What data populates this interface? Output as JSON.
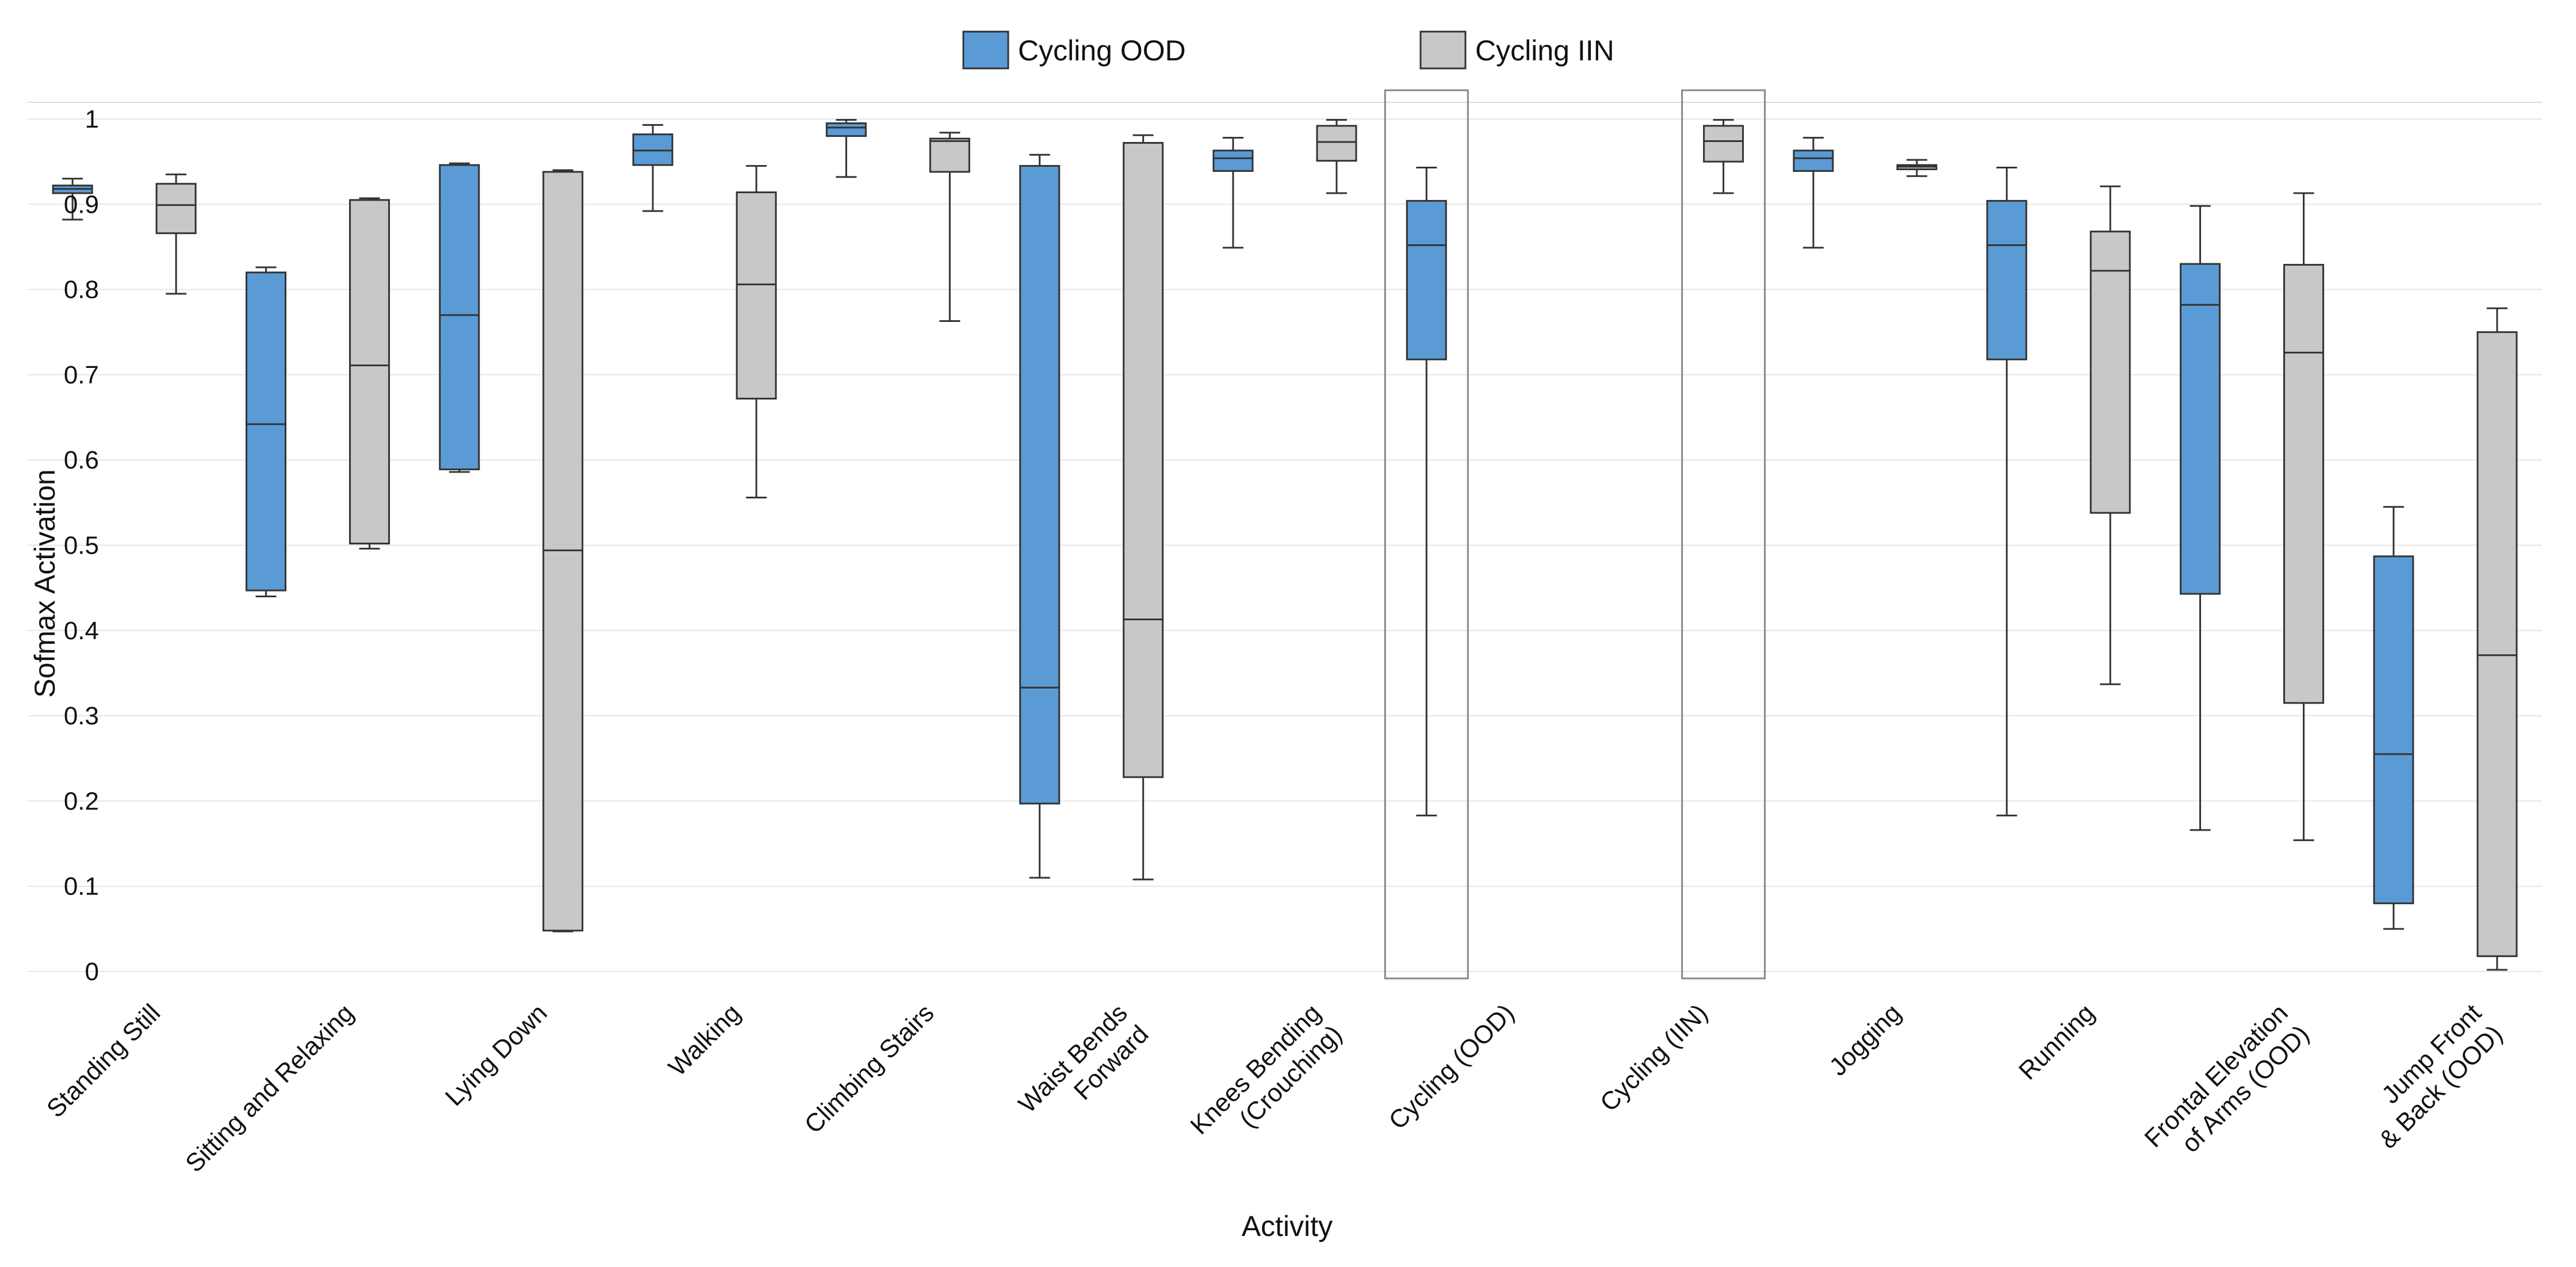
{
  "chart_data": {
    "type": "box",
    "xlabel": "Activity",
    "ylabel": "Sofmax Activation",
    "ylim": [
      0,
      1
    ],
    "yticks": [
      "0",
      "0.1",
      "0.2",
      "0.3",
      "0.4",
      "0.5",
      "0.6",
      "0.7",
      "0.8",
      "0.9",
      "1"
    ],
    "colors": {
      "ood": "#5b9bd5",
      "iin": "#c8c8c8",
      "highlight": "#888888"
    },
    "legend": [
      {
        "name": "Cycling OOD",
        "color": "#5b9bd5"
      },
      {
        "name": "Cycling IIN",
        "color": "#c8c8c8"
      }
    ],
    "groups": [
      {
        "label": [
          "Standing Still"
        ],
        "boxes": [
          {
            "series": "Cycling OOD",
            "min": 0.882,
            "q1": 0.913,
            "median": 0.918,
            "q3": 0.922,
            "max": 0.93
          },
          {
            "series": "Cycling IIN",
            "min": 0.795,
            "q1": 0.866,
            "median": 0.899,
            "q3": 0.924,
            "max": 0.935
          }
        ]
      },
      {
        "label": [
          "Sitting and Relaxing"
        ],
        "boxes": [
          {
            "series": "Cycling OOD",
            "min": 0.44,
            "q1": 0.447,
            "median": 0.642,
            "q3": 0.82,
            "max": 0.826
          },
          {
            "series": "Cycling IIN",
            "min": 0.496,
            "q1": 0.502,
            "median": 0.711,
            "q3": 0.905,
            "max": 0.907
          }
        ]
      },
      {
        "label": [
          "Lying Down"
        ],
        "boxes": [
          {
            "series": "Cycling OOD",
            "min": 0.586,
            "q1": 0.589,
            "median": 0.77,
            "q3": 0.946,
            "max": 0.948
          },
          {
            "series": "Cycling IIN",
            "min": 0.047,
            "q1": 0.048,
            "median": 0.494,
            "q3": 0.938,
            "max": 0.94
          }
        ]
      },
      {
        "label": [
          "Walking"
        ],
        "boxes": [
          {
            "series": "Cycling OOD",
            "min": 0.892,
            "q1": 0.946,
            "median": 0.963,
            "q3": 0.982,
            "max": 0.993
          },
          {
            "series": "Cycling IIN",
            "min": 0.556,
            "q1": 0.672,
            "median": 0.806,
            "q3": 0.914,
            "max": 0.945
          }
        ]
      },
      {
        "label": [
          "Climbing Stairs"
        ],
        "boxes": [
          {
            "series": "Cycling OOD",
            "min": 0.932,
            "q1": 0.98,
            "median": 0.99,
            "q3": 0.995,
            "max": 0.999
          },
          {
            "series": "Cycling IIN",
            "min": 0.763,
            "q1": 0.938,
            "median": 0.974,
            "q3": 0.977,
            "max": 0.984
          }
        ]
      },
      {
        "label": [
          "Waist Bends",
          "Forward"
        ],
        "boxes": [
          {
            "series": "Cycling OOD",
            "min": 0.11,
            "q1": 0.197,
            "median": 0.333,
            "q3": 0.945,
            "max": 0.958
          },
          {
            "series": "Cycling IIN",
            "min": 0.108,
            "q1": 0.228,
            "median": 0.413,
            "q3": 0.972,
            "max": 0.981
          }
        ]
      },
      {
        "label": [
          "Knees Bending",
          "(Crouching)"
        ],
        "boxes": [
          {
            "series": "Cycling OOD",
            "min": 0.849,
            "q1": 0.939,
            "median": 0.954,
            "q3": 0.963,
            "max": 0.978
          },
          {
            "series": "Cycling IIN",
            "min": 0.913,
            "q1": 0.951,
            "median": 0.973,
            "q3": 0.992,
            "max": 0.999
          }
        ]
      },
      {
        "label": [
          "Cycling (OOD)"
        ],
        "highlight": 0,
        "boxes": [
          {
            "series": "Cycling OOD",
            "min": 0.183,
            "q1": 0.718,
            "median": 0.852,
            "q3": 0.904,
            "max": 0.943
          }
        ]
      },
      {
        "label": [
          "Cycling (IIN)"
        ],
        "highlight": 1,
        "boxes": [
          {
            "series": "Cycling IIN",
            "min": 0.913,
            "q1": 0.95,
            "median": 0.974,
            "q3": 0.992,
            "max": 0.999
          }
        ]
      },
      {
        "label": [
          "Jogging"
        ],
        "boxes": [
          {
            "series": "Cycling OOD",
            "min": 0.849,
            "q1": 0.939,
            "median": 0.954,
            "q3": 0.963,
            "max": 0.978
          },
          {
            "series": "Cycling IIN",
            "min": 0.933,
            "q1": 0.941,
            "median": 0.944,
            "q3": 0.946,
            "max": 0.952
          }
        ]
      },
      {
        "label": [
          "Running"
        ],
        "boxes": [
          {
            "series": "Cycling OOD",
            "min": 0.183,
            "q1": 0.718,
            "median": 0.852,
            "q3": 0.904,
            "max": 0.943
          },
          {
            "series": "Cycling IIN",
            "min": 0.337,
            "q1": 0.538,
            "median": 0.822,
            "q3": 0.868,
            "max": 0.921
          }
        ]
      },
      {
        "label": [
          "Frontal Elevation",
          "of Arms (OOD)"
        ],
        "boxes": [
          {
            "series": "Cycling OOD",
            "min": 0.166,
            "q1": 0.443,
            "median": 0.782,
            "q3": 0.83,
            "max": 0.898
          },
          {
            "series": "Cycling IIN",
            "min": 0.154,
            "q1": 0.315,
            "median": 0.726,
            "q3": 0.829,
            "max": 0.913
          }
        ]
      },
      {
        "label": [
          "Jump Front",
          "& Back (OOD)"
        ],
        "boxes": [
          {
            "series": "Cycling OOD",
            "min": 0.05,
            "q1": 0.08,
            "median": 0.255,
            "q3": 0.487,
            "max": 0.545
          },
          {
            "series": "Cycling IIN",
            "min": 0.002,
            "q1": 0.018,
            "median": 0.371,
            "q3": 0.75,
            "max": 0.778
          }
        ]
      }
    ]
  }
}
